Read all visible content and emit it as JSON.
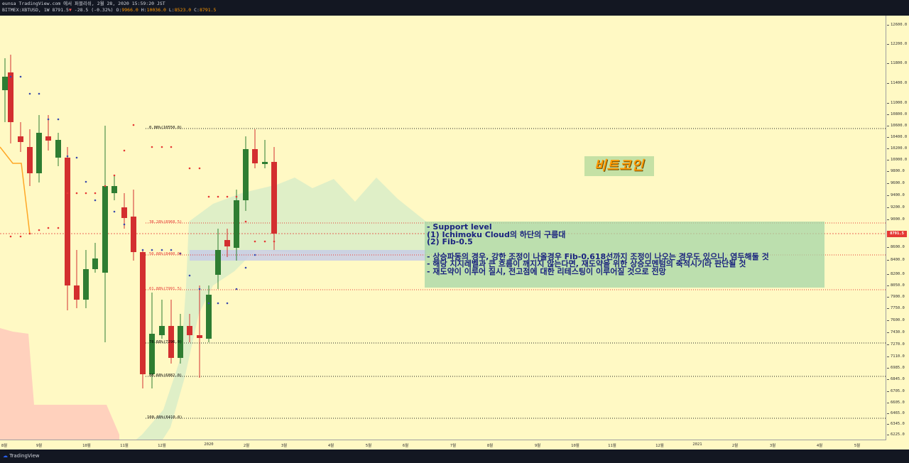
{
  "header": {
    "line1": "eunsa TradingView.com 에서 퍼블리쉬, 2월 28, 2020 15:59:20 JST",
    "symbol": "BITMEX:XBTUSD, 1W",
    "last": "8791.5",
    "change": "-28.5 (-0.32%)",
    "o_label": "O:",
    "o_value": "9966.0",
    "h_label": "H:",
    "h_value": "10036.0",
    "l_label": "L:",
    "l_value": "8523.0",
    "c_label": "C:",
    "c_value": "8791.5"
  },
  "price_axis": {
    "ticks": [
      "12600.0",
      "12200.0",
      "11800.0",
      "11400.0",
      "11000.0",
      "10800.0",
      "10600.0",
      "10400.0",
      "10200.0",
      "10000.0",
      "9800.0",
      "9600.0",
      "9400.0",
      "9200.0",
      "9000.0",
      "8600.0",
      "8400.0",
      "8200.0",
      "8050.0",
      "7900.0",
      "7750.0",
      "7600.0",
      "7430.0",
      "7270.0",
      "7110.0",
      "6985.0",
      "6845.0",
      "6705.0",
      "6605.0",
      "6465.0",
      "6345.0",
      "6225.0"
    ],
    "current": "8791.5"
  },
  "time_axis": {
    "labels": [
      "8월",
      "9월",
      "10월",
      "11월",
      "12월",
      "2020",
      "2월",
      "3월",
      "4월",
      "5월",
      "6월",
      "7월",
      "8월",
      "9월",
      "10월",
      "11월",
      "12월",
      "2021",
      "2월",
      "3월",
      "4월",
      "5월"
    ]
  },
  "fib_levels": [
    {
      "label": "0.00%(10550.0)",
      "color": "#222222"
    },
    {
      "label": "38.20%(8968.5)",
      "color": "#e53935"
    },
    {
      "label": "50.00%(8480.0)",
      "color": "#e53935"
    },
    {
      "label": "61.80%(7991.5)",
      "color": "#e53935"
    },
    {
      "label": "78.60%(7296.0)",
      "color": "#222222"
    },
    {
      "label": "88.60%(6882.0)",
      "color": "#222222"
    },
    {
      "label": "100.00%(6410.0)",
      "color": "#222222"
    }
  ],
  "title_label": "비트코인",
  "annotation": {
    "line1": "- Support level",
    "line2": "(1) Ichimoku Cloud의 하단의 구름대",
    "line3": "(2) Fib-0.5",
    "line4": "- 상승파동의 경우, 강한 조정이 나올경우 Fib-0.618선까지 조정이 나오는 경우도 있으니, 염두해둘 것",
    "line5": "- 해당 지지레벨과 큰 흐름이 깨지지 않는다면, 재도약을 위한 상승모멘텀의 축적시기라 판단될 것",
    "line6": "- 재도약이 이루어 질시, 전고점에 대한 리테스팅이 이루어질 것으로 전망"
  },
  "footer": {
    "brand": "TradingView"
  },
  "colors": {
    "up": "#2e7d32",
    "down": "#d32f2f",
    "cloud_green": "#dcedc8",
    "cloud_orange": "#ffccbc"
  }
}
